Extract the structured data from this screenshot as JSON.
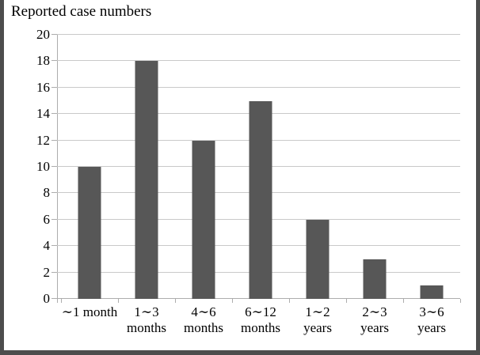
{
  "window": {
    "title": "Reported case numbers"
  },
  "colors": {
    "bar": "#575757",
    "gridline": "#c9c9c9",
    "axis": "#adadad",
    "frame_border": "#4d4d4d",
    "text": "#000000",
    "background": "#ffffff"
  },
  "chart_data": {
    "type": "bar",
    "title": "Reported case numbers",
    "categories": [
      "∼1 month",
      "1∼3\nmonths",
      "4∼6\nmonths",
      "6∼12\nmonths",
      "1∼2\nyears",
      "2∼3\nyears",
      "3∼6\nyears"
    ],
    "values": [
      10,
      18,
      12,
      15,
      6,
      3,
      1
    ],
    "xlabel": "",
    "ylabel": "",
    "ylim": [
      0,
      20
    ],
    "ytick_step": 2,
    "yticks": [
      0,
      2,
      4,
      6,
      8,
      10,
      12,
      14,
      16,
      18,
      20
    ],
    "grid": true,
    "legend_position": "none",
    "bar_color": "#575757"
  }
}
